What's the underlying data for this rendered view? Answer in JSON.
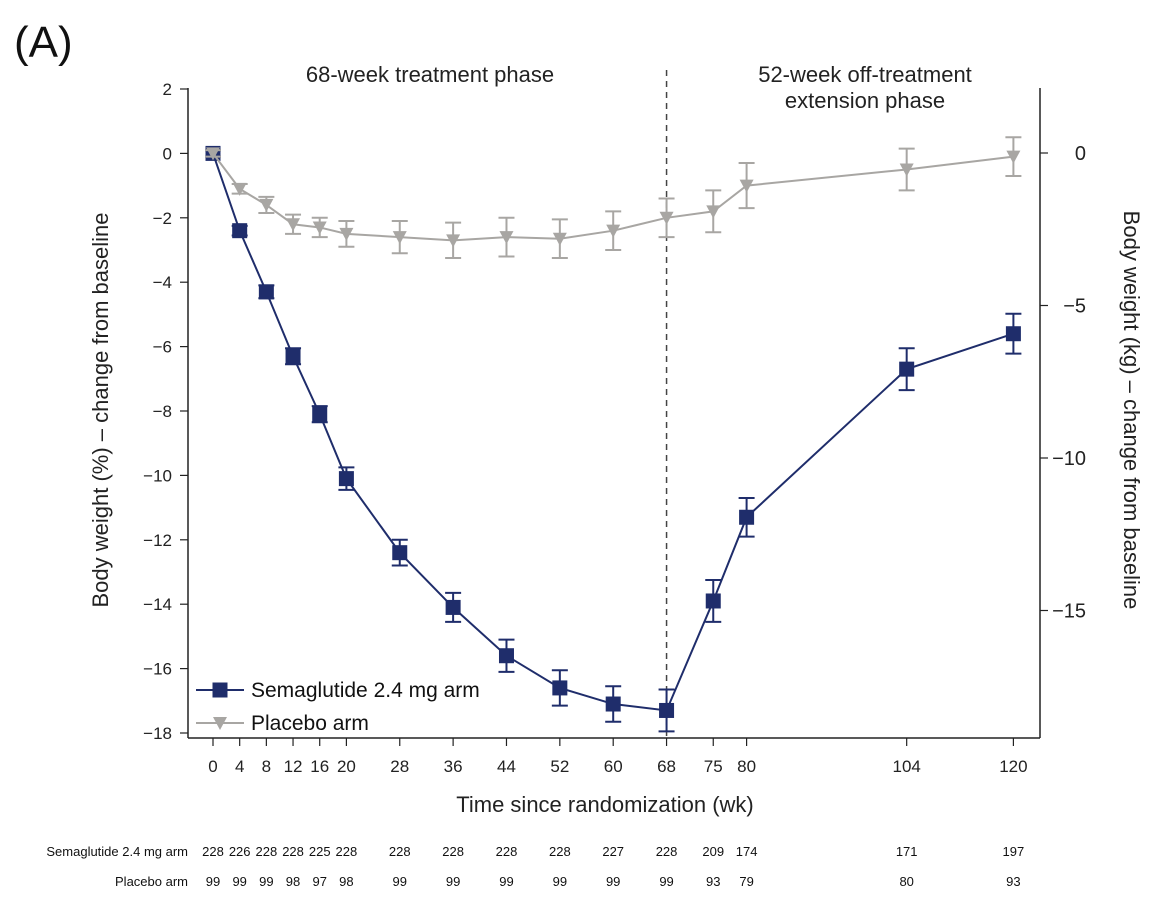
{
  "panel_label": "(A)",
  "chart_data": {
    "type": "line",
    "xlabel": "Time since randomization (wk)",
    "ylabel_left": "Body weight (%) – change from baseline",
    "ylabel_right": "Body weight (kg) – change from baseline",
    "ylim_left": [
      -18,
      2
    ],
    "yticks_left": [
      2,
      0,
      -2,
      -4,
      -6,
      -8,
      -10,
      -12,
      -14,
      -16,
      -18
    ],
    "ylim_right_ticks": [
      0,
      -5,
      -10,
      -15
    ],
    "xticks": [
      0,
      4,
      8,
      12,
      16,
      20,
      28,
      36,
      44,
      52,
      60,
      68,
      75,
      80,
      104,
      120
    ],
    "phase_divider_week": 68,
    "phases": [
      {
        "label": "68-week treatment phase"
      },
      {
        "label_line1": "52-week off-treatment",
        "label_line2": "extension phase"
      }
    ],
    "series": [
      {
        "name": "Semaglutide 2.4 mg arm",
        "color": "#1f2d6b",
        "marker": "square",
        "x": [
          0,
          4,
          8,
          12,
          16,
          20,
          28,
          36,
          44,
          52,
          60,
          68,
          75,
          80,
          104,
          120
        ],
        "y": [
          0,
          -2.4,
          -4.3,
          -6.3,
          -8.1,
          -10.1,
          -12.4,
          -14.1,
          -15.6,
          -16.6,
          -17.1,
          -17.3,
          -13.9,
          -11.3,
          -6.7,
          -5.6
        ],
        "err": [
          0.1,
          0.15,
          0.2,
          0.25,
          0.25,
          0.35,
          0.4,
          0.45,
          0.5,
          0.55,
          0.55,
          0.65,
          0.65,
          0.6,
          0.65,
          0.62
        ],
        "n_at_risk": [
          228,
          226,
          228,
          228,
          225,
          228,
          228,
          228,
          228,
          228,
          227,
          228,
          209,
          174,
          171,
          197
        ]
      },
      {
        "name": "Placebo arm",
        "color": "#a8a6a3",
        "marker": "triangle-down",
        "x": [
          0,
          4,
          8,
          12,
          16,
          20,
          28,
          36,
          44,
          52,
          60,
          68,
          75,
          80,
          104,
          120
        ],
        "y": [
          0,
          -1.1,
          -1.6,
          -2.2,
          -2.3,
          -2.5,
          -2.6,
          -2.7,
          -2.6,
          -2.65,
          -2.4,
          -2.0,
          -1.8,
          -1.0,
          -0.5,
          -0.1
        ],
        "err": [
          0.1,
          0.15,
          0.25,
          0.3,
          0.3,
          0.4,
          0.5,
          0.55,
          0.6,
          0.6,
          0.6,
          0.6,
          0.65,
          0.7,
          0.65,
          0.6
        ],
        "n_at_risk": [
          99,
          99,
          99,
          98,
          97,
          98,
          99,
          99,
          99,
          99,
          99,
          99,
          93,
          79,
          80,
          93
        ]
      }
    ],
    "risk_table_labels": [
      "Semaglutide 2.4 mg arm",
      "Placebo arm"
    ]
  }
}
